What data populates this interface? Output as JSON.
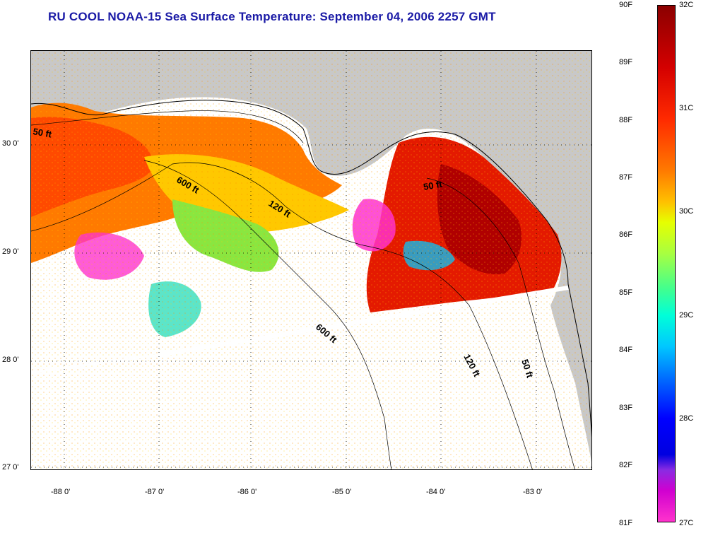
{
  "title": "RU COOL  NOAA-15  Sea Surface Temperature:  September 04, 2006 2257 GMT",
  "map": {
    "latitude_labels": [
      "30 0'",
      "29 0'",
      "28 0'",
      "27 0'"
    ],
    "longitude_labels": [
      "-88 0'",
      "-87 0'",
      "-86 0'",
      "-85 0'",
      "-84 0'",
      "-83 0'"
    ],
    "contour_labels": [
      "50 ft",
      "600 ft",
      "120 ft",
      "50 ft",
      "600 ft",
      "120 ft",
      "50 ft"
    ],
    "colors": {
      "land": "#c8c8c8",
      "cloud_mask": "#ffffff",
      "grid": "#000000"
    }
  },
  "colorbar": {
    "fahrenheit_labels": [
      "90F",
      "89F",
      "88F",
      "87F",
      "86F",
      "85F",
      "84F",
      "83F",
      "82F",
      "81F"
    ],
    "celsius_labels": [
      "32C",
      "31C",
      "30C",
      "29C",
      "28C",
      "27C"
    ],
    "range_f": [
      81,
      90
    ],
    "range_c": [
      27,
      32
    ]
  }
}
